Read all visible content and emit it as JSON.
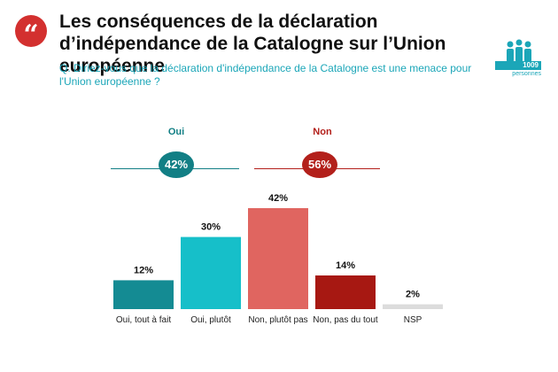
{
  "header": {
    "quote_glyph": "“",
    "title": "Les conséquences de la déclaration d’indépendance de la Catalogne sur l’Union européenne",
    "question": "Q. Diriez-vous que la déclaration d'indépendance de la Catalogne est une menace pour l'Union européenne ?",
    "sample_count": "1009",
    "sample_label": "personnes"
  },
  "summary": {
    "oui": {
      "label": "Oui",
      "value": "42%",
      "color": "#127f85"
    },
    "non": {
      "label": "Non",
      "value": "56%",
      "color": "#b3201b"
    }
  },
  "chart_data": {
    "type": "bar",
    "categories": [
      "Oui, tout à fait",
      "Oui, plutôt",
      "Non, plutôt pas",
      "Non, pas du tout",
      "NSP"
    ],
    "values": [
      12,
      30,
      42,
      14,
      2
    ],
    "value_labels": [
      "12%",
      "30%",
      "42%",
      "14%",
      "2%"
    ],
    "colors": [
      "#148b93",
      "#16bfc9",
      "#e06560",
      "#a71812",
      "#dcdcdc"
    ],
    "ylim": [
      0,
      42
    ],
    "grid": false
  }
}
